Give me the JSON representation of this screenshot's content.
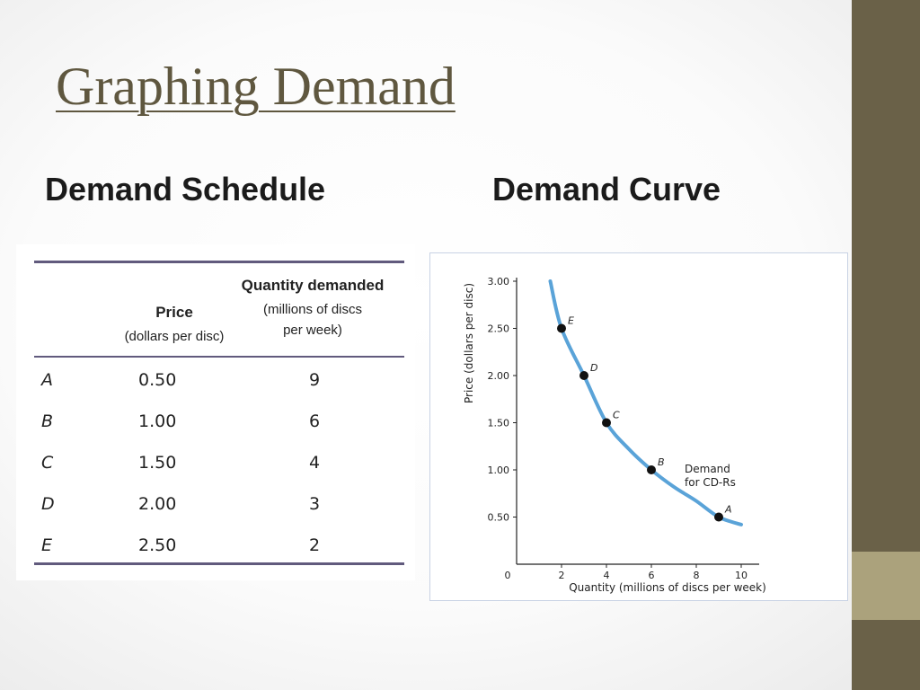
{
  "slide": {
    "title": "Graphing Demand",
    "left_heading": "Demand Schedule",
    "right_heading": "Demand Curve",
    "colors": {
      "band": "#6a6148",
      "accent": "#aba27c",
      "title": "#5f573f",
      "curve": "#5aa3d8",
      "table_rule": "#615a7d"
    }
  },
  "table": {
    "price_header": "Price",
    "price_unit": "(dollars per disc)",
    "qty_header": "Quantity demanded",
    "qty_unit_1": "(millions of discs",
    "qty_unit_2": "per week)",
    "rows": [
      {
        "label": "A",
        "price": "0.50",
        "quantity": "9"
      },
      {
        "label": "B",
        "price": "1.00",
        "quantity": "6"
      },
      {
        "label": "C",
        "price": "1.50",
        "quantity": "4"
      },
      {
        "label": "D",
        "price": "2.00",
        "quantity": "3"
      },
      {
        "label": "E",
        "price": "2.50",
        "quantity": "2"
      }
    ]
  },
  "chart_data": {
    "type": "line",
    "xlabel": "Quantity (millions of discs per week)",
    "ylabel": "Price (dollars per disc)",
    "xlim": [
      0,
      10
    ],
    "ylim": [
      0,
      3.0
    ],
    "x_ticks": [
      "0",
      "2",
      "4",
      "6",
      "8",
      "10"
    ],
    "y_ticks": [
      "0.50",
      "1.00",
      "1.50",
      "2.00",
      "2.50",
      "3.00"
    ],
    "curve_label_1": "Demand",
    "curve_label_2": "for CD-Rs",
    "points": [
      {
        "label": "A",
        "x": 9,
        "y": 0.5
      },
      {
        "label": "B",
        "x": 6,
        "y": 1.0
      },
      {
        "label": "C",
        "x": 4,
        "y": 1.5
      },
      {
        "label": "D",
        "x": 3,
        "y": 2.0
      },
      {
        "label": "E",
        "x": 2,
        "y": 2.5
      }
    ],
    "curve": {
      "x": [
        1.5,
        2,
        3,
        4,
        5,
        6,
        7,
        8,
        9,
        10
      ],
      "y": [
        3.0,
        2.5,
        2.0,
        1.5,
        1.22,
        1.0,
        0.82,
        0.67,
        0.5,
        0.42
      ]
    }
  }
}
